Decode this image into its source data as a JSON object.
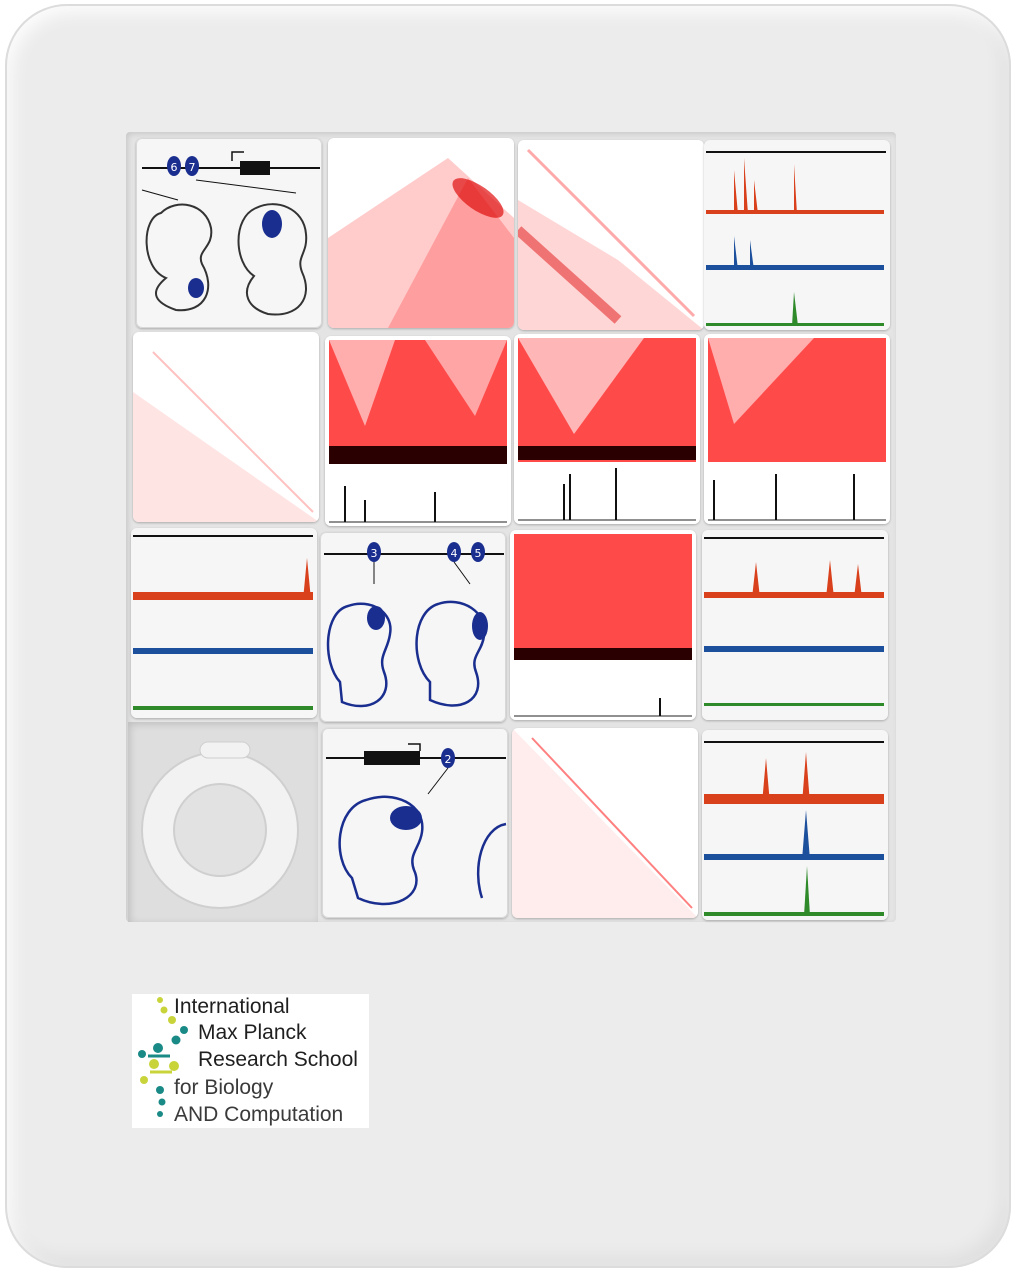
{
  "logo": {
    "line1": "International",
    "line2": "Max Planck",
    "line3": "Research School",
    "line4": "for Biology",
    "line5": "AND Computation",
    "dot_colors": [
      "#1a8a86",
      "#c8d43a",
      "#2a9d8f"
    ]
  },
  "tiles": {
    "gene_labels_a": [
      "6",
      "7"
    ],
    "gene_labels_b": [
      "3",
      "4",
      "5"
    ],
    "gene_labels_c": [
      "2"
    ]
  },
  "colors": {
    "board": "#ececec",
    "heatmap": "#ff2020",
    "track_red": "#d9401c",
    "track_blue": "#1c4f9c",
    "track_green": "#2f8a2a",
    "embryo_blue": "#1a2e8f"
  }
}
